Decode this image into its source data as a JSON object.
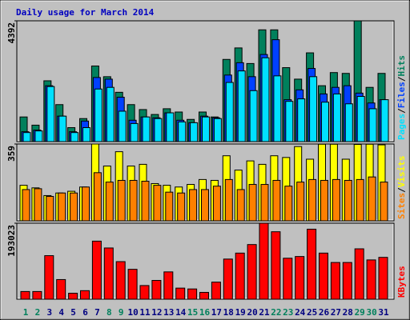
{
  "chart_data": [
    {
      "type": "bar",
      "title": "Daily usage for March 2014",
      "title_color": "#0000c0",
      "ylim": [
        0,
        4392
      ],
      "yticks": [
        4392
      ],
      "legend_separator": "/",
      "series": [
        {
          "name": "Hits",
          "color": "#00805c",
          "values": [
            896,
            598,
            2211,
            1345,
            508,
            837,
            2749,
            2360,
            1793,
            1345,
            1165,
            986,
            1195,
            1076,
            807,
            1076,
            896,
            2988,
            3406,
            2839,
            4064,
            4064,
            2689,
            2271,
            3227,
            2032,
            2510,
            2480,
            4392,
            1972,
            2480
          ]
        },
        {
          "name": "Files",
          "color": "#0040ff",
          "values": [
            359,
            418,
            2032,
            926,
            359,
            747,
            2331,
            2271,
            1614,
            777,
            896,
            867,
            1046,
            777,
            687,
            926,
            867,
            2420,
            2868,
            2361,
            3167,
            3705,
            1524,
            1882,
            2659,
            1733,
            1972,
            2032,
            1763,
            1404,
            1524
          ]
        },
        {
          "name": "Pages",
          "color": "#00e0ff",
          "values": [
            329,
            388,
            2002,
            926,
            329,
            508,
            1912,
            1972,
            1106,
            657,
            896,
            837,
            1046,
            717,
            687,
            896,
            837,
            2151,
            2570,
            1853,
            3048,
            2390,
            1464,
            1554,
            2361,
            1434,
            1733,
            1374,
            1643,
            1195,
            1524
          ]
        }
      ]
    },
    {
      "type": "bar",
      "ylim": [
        0,
        359
      ],
      "yticks": [
        359
      ],
      "legend_separator": "/",
      "series": [
        {
          "name": "Visits",
          "color": "#ffff00",
          "values": [
            166,
            154,
            118,
            130,
            138,
            158,
            359,
            256,
            323,
            256,
            264,
            174,
            166,
            158,
            170,
            193,
            189,
            304,
            237,
            280,
            264,
            304,
            296,
            347,
            288,
            358,
            358,
            288,
            357,
            358,
            355
          ]
        },
        {
          "name": "Sites",
          "color": "#ff8000",
          "values": [
            146,
            150,
            114,
            130,
            130,
            158,
            225,
            181,
            189,
            189,
            185,
            166,
            134,
            130,
            146,
            146,
            162,
            193,
            146,
            170,
            170,
            189,
            162,
            181,
            193,
            189,
            193,
            189,
            193,
            205,
            181
          ]
        }
      ]
    },
    {
      "type": "bar",
      "ylim": [
        0,
        193023
      ],
      "yticks": [
        193023
      ],
      "legend_separator": "/",
      "series": [
        {
          "name": "KBytes",
          "color": "#ff0000",
          "values": [
            19519,
            19519,
            110609,
            49883,
            15182,
            21688,
            147478,
            130128,
            95427,
            75908,
            34701,
            47714,
            69402,
            28194,
            26026,
            17350,
            43376,
            101934,
            117115,
            138803,
            193023,
            171335,
            104102,
            108440,
            177842,
            117115,
            93258,
            93258,
            127959,
            99765,
            106271
          ]
        }
      ],
      "categories": [
        "1",
        "2",
        "3",
        "4",
        "5",
        "6",
        "7",
        "8",
        "9",
        "10",
        "11",
        "12",
        "13",
        "14",
        "15",
        "16",
        "17",
        "18",
        "19",
        "20",
        "21",
        "22",
        "23",
        "24",
        "25",
        "26",
        "27",
        "28",
        "29",
        "30",
        "31"
      ],
      "category_colors": [
        "#00805c",
        "#00805c",
        "#000080",
        "#000080",
        "#000080",
        "#000080",
        "#000080",
        "#00805c",
        "#00805c",
        "#000080",
        "#000080",
        "#000080",
        "#000080",
        "#000080",
        "#00805c",
        "#00805c",
        "#000080",
        "#000080",
        "#000080",
        "#000080",
        "#000080",
        "#00805c",
        "#00805c",
        "#000080",
        "#000080",
        "#000080",
        "#000080",
        "#000080",
        "#00805c",
        "#00805c",
        "#000080"
      ]
    }
  ]
}
